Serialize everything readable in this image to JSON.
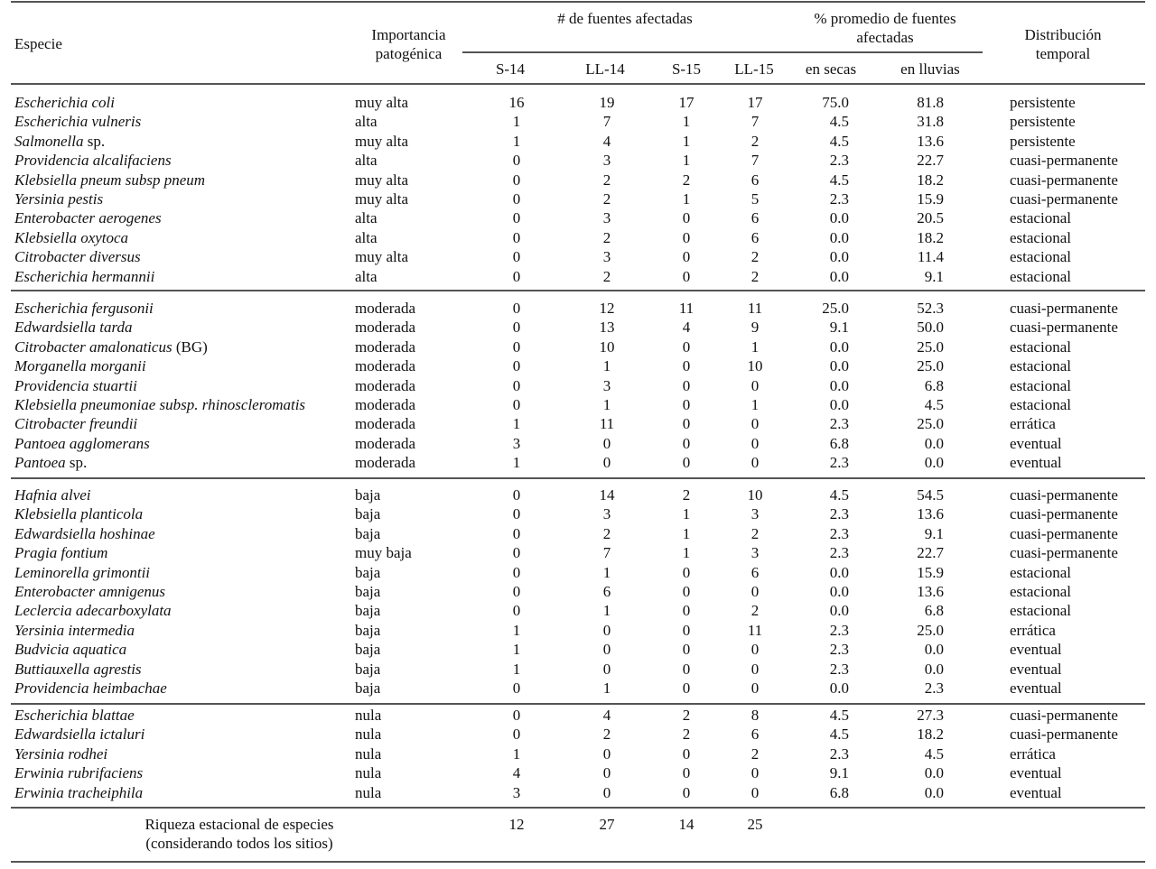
{
  "header": {
    "especie": "Especie",
    "importancia": "Importancia patogénica",
    "fuentes_group": "# de fuentes afectadas",
    "promedio_group": "% promedio de fuentes afectadas",
    "distribucion": "Distribución temporal",
    "s14": "S-14",
    "ll14": "LL-14",
    "s15": "S-15",
    "ll15": "LL-15",
    "secas": "en secas",
    "lluvias": "en lluvias"
  },
  "groups": [
    [
      {
        "species": "Escherichia coli",
        "suffix": "",
        "imp": "muy alta",
        "s14": "16",
        "ll14": "19",
        "s15": "17",
        "ll15": "17",
        "secas": "75.0",
        "lluvias": "81.8",
        "dist": "persistente"
      },
      {
        "species": "Escherichia vulneris",
        "suffix": "",
        "imp": "alta",
        "s14": "1",
        "ll14": "7",
        "s15": "1",
        "ll15": "7",
        "secas": "4.5",
        "lluvias": "31.8",
        "dist": "persistente"
      },
      {
        "species": "Salmonella",
        "suffix": " sp.",
        "imp": "muy alta",
        "s14": "1",
        "ll14": "4",
        "s15": "1",
        "ll15": "2",
        "secas": "4.5",
        "lluvias": "13.6",
        "dist": "persistente"
      },
      {
        "species": "Providencia alcalifaciens",
        "suffix": "",
        "imp": "alta",
        "s14": "0",
        "ll14": "3",
        "s15": "1",
        "ll15": "7",
        "secas": "2.3",
        "lluvias": "22.7",
        "dist": "cuasi-permanente"
      },
      {
        "species": "Klebsiella pneum subsp pneum",
        "suffix": "",
        "imp": "muy alta",
        "s14": "0",
        "ll14": "2",
        "s15": "2",
        "ll15": "6",
        "secas": "4.5",
        "lluvias": "18.2",
        "dist": "cuasi-permanente"
      },
      {
        "species": "Yersinia pestis",
        "suffix": "",
        "imp": "muy alta",
        "s14": "0",
        "ll14": "2",
        "s15": "1",
        "ll15": "5",
        "secas": "2.3",
        "lluvias": "15.9",
        "dist": "cuasi-permanente"
      },
      {
        "species": "Enterobacter aerogenes",
        "suffix": "",
        "imp": "alta",
        "s14": "0",
        "ll14": "3",
        "s15": "0",
        "ll15": "6",
        "secas": "0.0",
        "lluvias": "20.5",
        "dist": "estacional"
      },
      {
        "species": "Klebsiella oxytoca",
        "suffix": "",
        "imp": "alta",
        "s14": "0",
        "ll14": "2",
        "s15": "0",
        "ll15": "6",
        "secas": "0.0",
        "lluvias": "18.2",
        "dist": "estacional"
      },
      {
        "species": "Citrobacter diversus",
        "suffix": "",
        "imp": "muy alta",
        "s14": "0",
        "ll14": "3",
        "s15": "0",
        "ll15": "2",
        "secas": "0.0",
        "lluvias": "11.4",
        "dist": "estacional"
      },
      {
        "species": "Escherichia hermannii",
        "suffix": "",
        "imp": "alta",
        "s14": "0",
        "ll14": "2",
        "s15": "0",
        "ll15": "2",
        "secas": "0.0",
        "lluvias": "9.1",
        "dist": "estacional"
      }
    ],
    [
      {
        "species": "Escherichia fergusonii",
        "suffix": "",
        "imp": "moderada",
        "s14": "0",
        "ll14": "12",
        "s15": "11",
        "ll15": "11",
        "secas": "25.0",
        "lluvias": "52.3",
        "dist": "cuasi-permanente"
      },
      {
        "species": "Edwardsiella tarda",
        "suffix": "",
        "imp": "moderada",
        "s14": "0",
        "ll14": "13",
        "s15": "4",
        "ll15": "9",
        "secas": "9.1",
        "lluvias": "50.0",
        "dist": "cuasi-permanente"
      },
      {
        "species": "Citrobacter amalonaticus",
        "suffix": " (BG)",
        "imp": "moderada",
        "s14": "0",
        "ll14": "10",
        "s15": "0",
        "ll15": "1",
        "secas": "0.0",
        "lluvias": "25.0",
        "dist": "estacional"
      },
      {
        "species": "Morganella morganii",
        "suffix": "",
        "imp": "moderada",
        "s14": "0",
        "ll14": "1",
        "s15": "0",
        "ll15": "10",
        "secas": "0.0",
        "lluvias": "25.0",
        "dist": "estacional"
      },
      {
        "species": "Providencia stuartii",
        "suffix": "",
        "imp": "moderada",
        "s14": "0",
        "ll14": "3",
        "s15": "0",
        "ll15": "0",
        "secas": "0.0",
        "lluvias": "6.8",
        "dist": "estacional"
      },
      {
        "species": "Klebsiella pneumoniae subsp. rhinoscleromatis",
        "suffix": "",
        "imp": "moderada",
        "s14": "0",
        "ll14": "1",
        "s15": "0",
        "ll15": "1",
        "secas": "0.0",
        "lluvias": "4.5",
        "dist": "estacional"
      },
      {
        "species": "Citrobacter freundii",
        "suffix": "",
        "imp": "moderada",
        "s14": "1",
        "ll14": "11",
        "s15": "0",
        "ll15": "0",
        "secas": "2.3",
        "lluvias": "25.0",
        "dist": "errática"
      },
      {
        "species": "Pantoea agglomerans",
        "suffix": "",
        "imp": "moderada",
        "s14": "3",
        "ll14": "0",
        "s15": "0",
        "ll15": "0",
        "secas": "6.8",
        "lluvias": "0.0",
        "dist": "eventual"
      },
      {
        "species": "Pantoea",
        "suffix": " sp.",
        "imp": "moderada",
        "s14": "1",
        "ll14": "0",
        "s15": "0",
        "ll15": "0",
        "secas": "2.3",
        "lluvias": "0.0",
        "dist": "eventual"
      }
    ],
    [
      {
        "species": "Hafnia alvei",
        "suffix": "",
        "imp": "baja",
        "s14": "0",
        "ll14": "14",
        "s15": "2",
        "ll15": "10",
        "secas": "4.5",
        "lluvias": "54.5",
        "dist": "cuasi-permanente"
      },
      {
        "species": "Klebsiella planticola",
        "suffix": "",
        "imp": "baja",
        "s14": "0",
        "ll14": "3",
        "s15": "1",
        "ll15": "3",
        "secas": "2.3",
        "lluvias": "13.6",
        "dist": "cuasi-permanente"
      },
      {
        "species": "Edwardsiella hoshinae",
        "suffix": "",
        "imp": "baja",
        "s14": "0",
        "ll14": "2",
        "s15": "1",
        "ll15": "2",
        "secas": "2.3",
        "lluvias": "9.1",
        "dist": "cuasi-permanente"
      },
      {
        "species": "Pragia fontium",
        "suffix": "",
        "imp": "muy baja",
        "s14": "0",
        "ll14": "7",
        "s15": "1",
        "ll15": "3",
        "secas": "2.3",
        "lluvias": "22.7",
        "dist": "cuasi-permanente"
      },
      {
        "species": "Leminorella grimontii",
        "suffix": "",
        "imp": "baja",
        "s14": "0",
        "ll14": "1",
        "s15": "0",
        "ll15": "6",
        "secas": "0.0",
        "lluvias": "15.9",
        "dist": "estacional"
      },
      {
        "species": "Enterobacter amnigenus",
        "suffix": "",
        "imp": "baja",
        "s14": "0",
        "ll14": "6",
        "s15": "0",
        "ll15": "0",
        "secas": "0.0",
        "lluvias": "13.6",
        "dist": "estacional"
      },
      {
        "species": "Leclercia adecarboxylata",
        "suffix": "",
        "imp": "baja",
        "s14": "0",
        "ll14": "1",
        "s15": "0",
        "ll15": "2",
        "secas": "0.0",
        "lluvias": "6.8",
        "dist": "estacional"
      },
      {
        "species": "Yersinia intermedia",
        "suffix": "",
        "imp": "baja",
        "s14": "1",
        "ll14": "0",
        "s15": "0",
        "ll15": "11",
        "secas": "2.3",
        "lluvias": "25.0",
        "dist": "errática"
      },
      {
        "species": "Budvicia aquatica",
        "suffix": "",
        "imp": "baja",
        "s14": "1",
        "ll14": "0",
        "s15": "0",
        "ll15": "0",
        "secas": "2.3",
        "lluvias": "0.0",
        "dist": "eventual"
      },
      {
        "species": "Buttiauxella agrestis",
        "suffix": "",
        "imp": "baja",
        "s14": "1",
        "ll14": "0",
        "s15": "0",
        "ll15": "0",
        "secas": "2.3",
        "lluvias": "0.0",
        "dist": "eventual"
      },
      {
        "species": "Providencia heimbachae",
        "suffix": "",
        "imp": "baja",
        "s14": "0",
        "ll14": "1",
        "s15": "0",
        "ll15": "0",
        "secas": "0.0",
        "lluvias": "2.3",
        "dist": "eventual"
      }
    ],
    [
      {
        "species": "Escherichia blattae",
        "suffix": "",
        "imp": "nula",
        "s14": "0",
        "ll14": "4",
        "s15": "2",
        "ll15": "8",
        "secas": "4.5",
        "lluvias": "27.3",
        "dist": "cuasi-permanente"
      },
      {
        "species": "Edwardsiella ictaluri",
        "suffix": "",
        "imp": "nula",
        "s14": "0",
        "ll14": "2",
        "s15": "2",
        "ll15": "6",
        "secas": "4.5",
        "lluvias": "18.2",
        "dist": "cuasi-permanente"
      },
      {
        "species": "Yersinia rodhei",
        "suffix": "",
        "imp": "nula",
        "s14": "1",
        "ll14": "0",
        "s15": "0",
        "ll15": "2",
        "secas": "2.3",
        "lluvias": "4.5",
        "dist": "errática"
      },
      {
        "species": "Erwinia rubrifaciens",
        "suffix": "",
        "imp": "nula",
        "s14": "4",
        "ll14": "0",
        "s15": "0",
        "ll15": "0",
        "secas": "9.1",
        "lluvias": "0.0",
        "dist": "eventual"
      },
      {
        "species": "Erwinia tracheiphila",
        "suffix": "",
        "imp": "nula",
        "s14": "3",
        "ll14": "0",
        "s15": "0",
        "ll15": "0",
        "secas": "6.8",
        "lluvias": "0.0",
        "dist": "eventual"
      }
    ]
  ],
  "summary": {
    "label_line1": "Riqueza estacional de especies",
    "label_line2": "(considerando todos los sitios)",
    "s14": "12",
    "ll14": "27",
    "s15": "14",
    "ll15": "25"
  }
}
